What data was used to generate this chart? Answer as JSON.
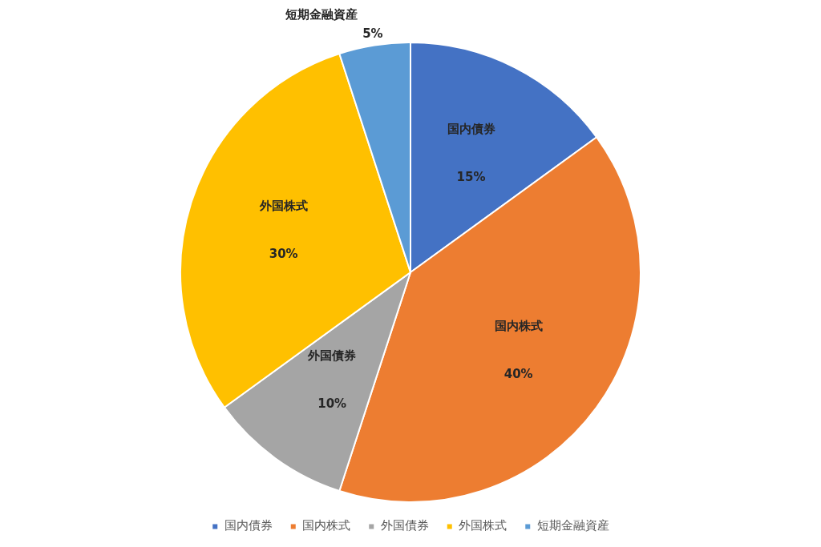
{
  "chart_data": {
    "type": "pie",
    "categories": [
      "国内債券",
      "国内株式",
      "外国債券",
      "外国株式",
      "短期金融資産"
    ],
    "values": [
      15,
      40,
      10,
      30,
      5
    ],
    "colors": [
      "#4472c4",
      "#ed7d31",
      "#a5a5a5",
      "#ffc000",
      "#5b9bd5"
    ],
    "value_labels": [
      "15%",
      "40%",
      "10%",
      "30%",
      "5%"
    ],
    "legend": "bottom"
  }
}
